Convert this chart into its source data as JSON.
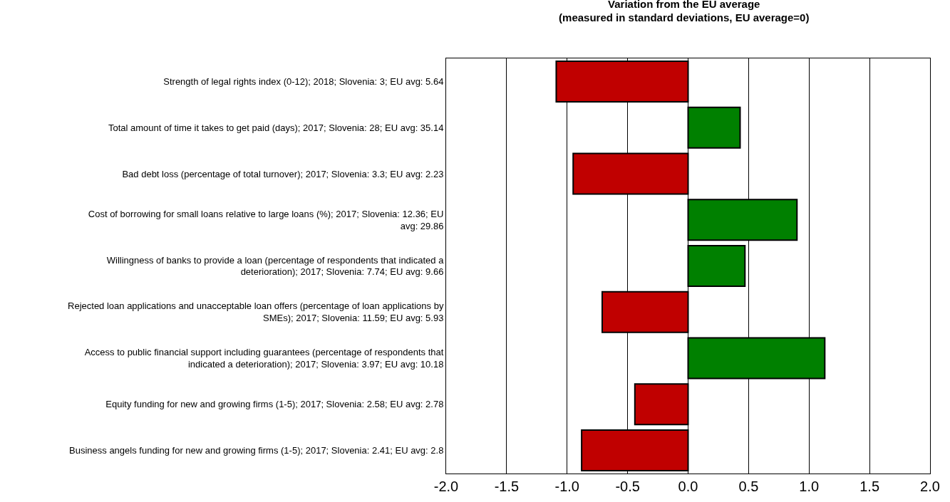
{
  "chart_data": {
    "type": "bar",
    "orientation": "horizontal",
    "title": "Variation from the EU average\n(measured in standard deviations, EU average=0)",
    "categories": [
      "Strength of legal rights index (0-12); 2018; Slovenia: 3; EU avg: 5.64",
      "Total amount of time it takes to get paid (days); 2017; Slovenia: 28; EU avg: 35.14",
      "Bad debt loss (percentage of total turnover); 2017; Slovenia: 3.3; EU avg: 2.23",
      "Cost of borrowing for small loans relative to large loans (%); 2017; Slovenia: 12.36; EU avg: 29.86",
      "Willingness of banks to provide a loan (percentage of respondents that indicated a deterioration); 2017; Slovenia: 7.74; EU avg: 9.66",
      "Rejected loan applications and unacceptable loan offers (percentage of loan applications by SMEs); 2017; Slovenia: 11.59; EU avg: 5.93",
      "Access to public financial support including guarantees (percentage of respondents that indicated a deterioration); 2017; Slovenia: 3.97; EU avg: 10.18",
      "Equity funding for new and growing firms (1-5); 2017; Slovenia: 2.58; EU avg: 2.78",
      "Business angels funding for new and growing firms (1-5); 2017; Slovenia: 2.41; EU avg: 2.8"
    ],
    "values": [
      -1.09,
      0.43,
      -0.95,
      0.9,
      0.47,
      -0.71,
      1.13,
      -0.44,
      -0.88
    ],
    "colors": [
      "#c00000",
      "#008000",
      "#c00000",
      "#008000",
      "#008000",
      "#c00000",
      "#008000",
      "#c00000",
      "#c00000"
    ],
    "xlim": [
      -2,
      2
    ],
    "xticks": [
      {
        "value": -2,
        "label": "-2.0"
      },
      {
        "value": -1.5,
        "label": "-1.5"
      },
      {
        "value": -1,
        "label": "-1.0"
      },
      {
        "value": -0.5,
        "label": "-0.5"
      },
      {
        "value": 0,
        "label": "0.0"
      },
      {
        "value": 0.5,
        "label": "0.5"
      },
      {
        "value": 1,
        "label": "1.0"
      },
      {
        "value": 1.5,
        "label": "1.5"
      },
      {
        "value": 2,
        "label": "2.0"
      }
    ],
    "grid": "x",
    "legend": false
  }
}
